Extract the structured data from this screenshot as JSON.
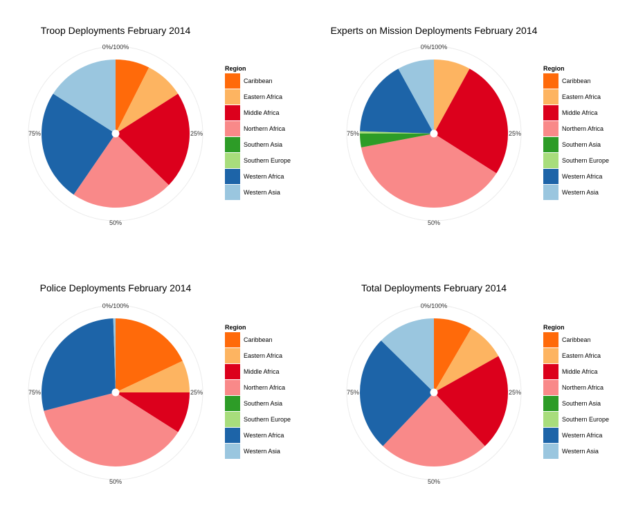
{
  "figure": {
    "legend_title": "Region",
    "tick_labels": [
      "0%/100%",
      "25%",
      "50%",
      "75%"
    ],
    "regions": [
      {
        "name": "Caribbean",
        "color": "#ff6a0a"
      },
      {
        "name": "Eastern Africa",
        "color": "#fdb461"
      },
      {
        "name": "Middle Africa",
        "color": "#dc001c"
      },
      {
        "name": "Northern Africa",
        "color": "#f98989"
      },
      {
        "name": "Southern Asia",
        "color": "#2d9c27"
      },
      {
        "name": "Southern Europe",
        "color": "#a8dd7c"
      },
      {
        "name": "Western Africa",
        "color": "#1d64a8"
      },
      {
        "name": "Western Asia",
        "color": "#9ac6df"
      }
    ]
  },
  "chart_data": [
    {
      "type": "pie",
      "title": "Troop Deployments February 2014",
      "legend": "right",
      "categories": [
        "Caribbean",
        "Eastern Africa",
        "Middle Africa",
        "Northern Africa",
        "Southern Asia",
        "Southern Europe",
        "Western Africa",
        "Western Asia"
      ],
      "values": [
        7,
        8,
        20,
        21,
        0,
        0,
        23,
        15
      ]
    },
    {
      "type": "pie",
      "title": "Experts on Mission Deployments February 2014",
      "legend": "right",
      "categories": [
        "Caribbean",
        "Eastern Africa",
        "Middle Africa",
        "Northern Africa",
        "Southern Asia",
        "Southern Europe",
        "Western Africa",
        "Western Asia"
      ],
      "values": [
        0,
        8,
        26,
        38,
        3,
        0.5,
        16.5,
        8
      ]
    },
    {
      "type": "pie",
      "title": "Police Deployments February 2014",
      "legend": "right",
      "categories": [
        "Caribbean",
        "Eastern Africa",
        "Middle Africa",
        "Northern Africa",
        "Southern Asia",
        "Southern Europe",
        "Western Africa",
        "Western Asia"
      ],
      "values": [
        18,
        7,
        9,
        37,
        0,
        0,
        28.5,
        0.5
      ]
    },
    {
      "type": "pie",
      "title": "Total Deployments February 2014",
      "legend": "right",
      "categories": [
        "Caribbean",
        "Eastern Africa",
        "Middle Africa",
        "Northern Africa",
        "Southern Asia",
        "Southern Europe",
        "Western Africa",
        "Western Asia"
      ],
      "values": [
        8,
        8,
        20,
        23,
        0,
        0,
        24,
        12
      ]
    }
  ]
}
